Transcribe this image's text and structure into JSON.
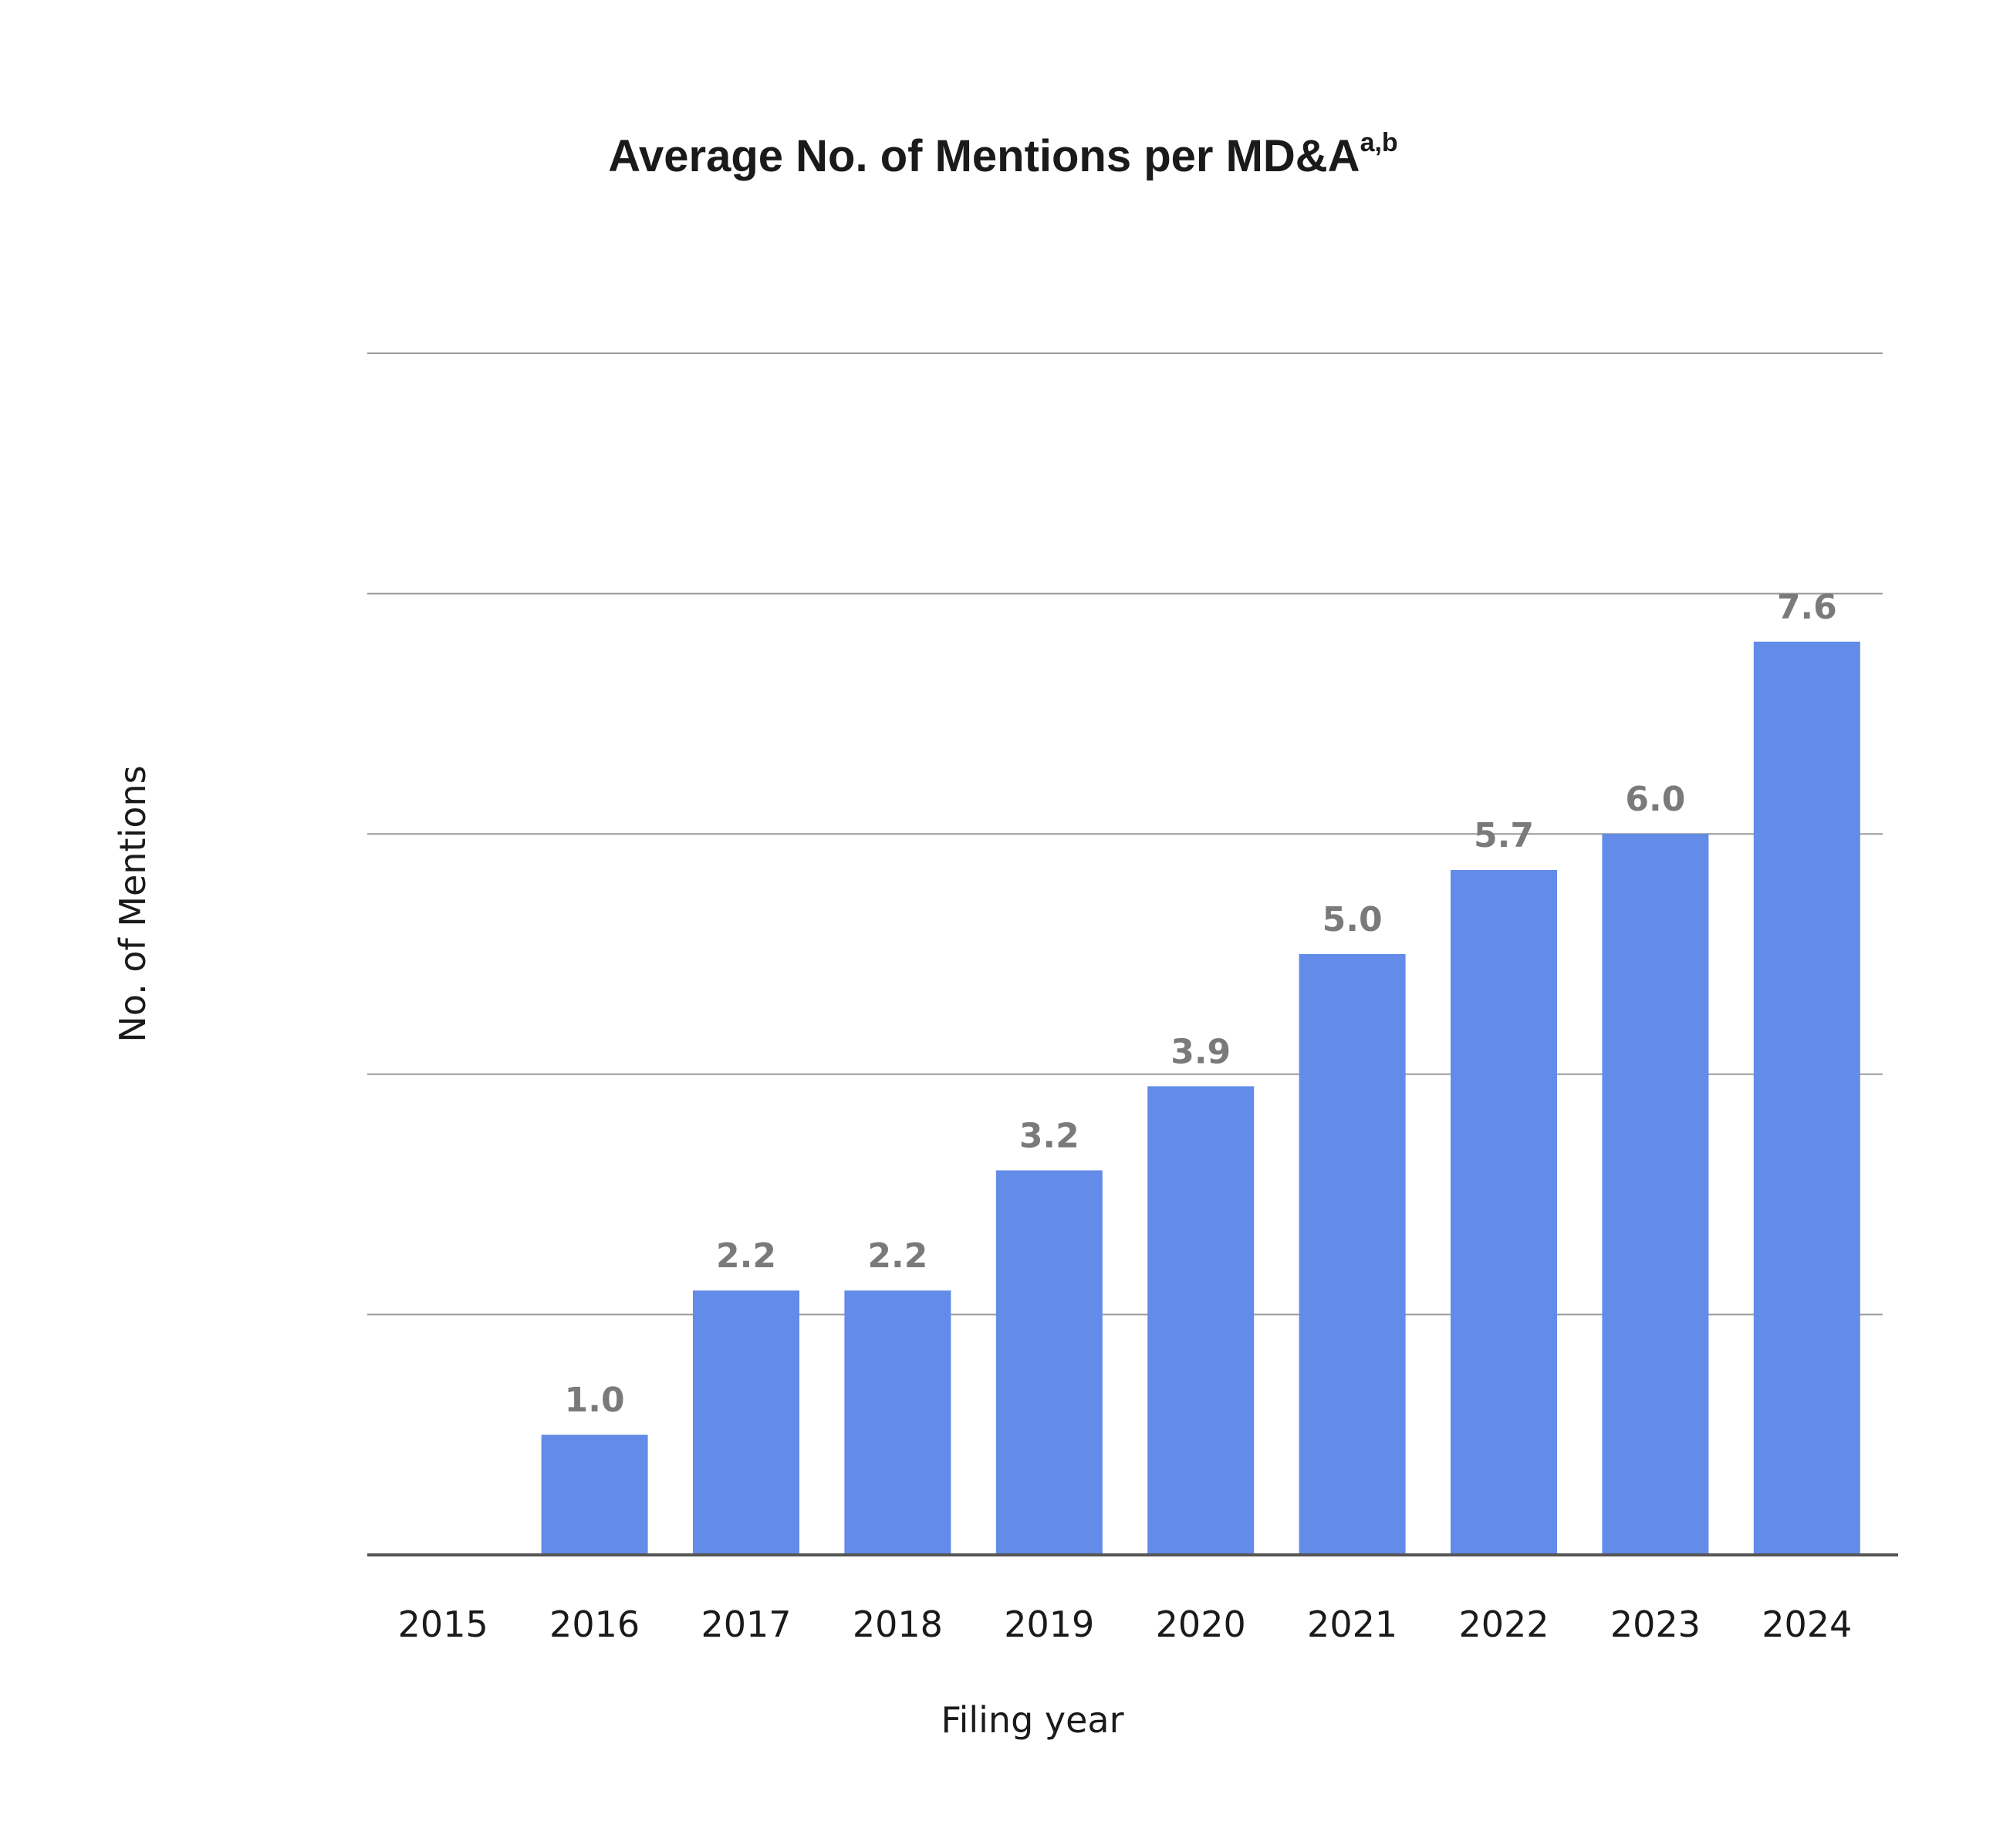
{
  "chart_data": {
    "type": "bar",
    "title": "Average No. of Mentions per MD&A",
    "title_superscript": "a,b",
    "xlabel": "Filing year",
    "ylabel": "No. of Mentions",
    "categories": [
      "2015",
      "2016",
      "2017",
      "2018",
      "2019",
      "2020",
      "2021",
      "2022",
      "2023",
      "2024"
    ],
    "values": [
      0,
      1.0,
      2.2,
      2.2,
      3.2,
      3.9,
      5.0,
      5.7,
      6.0,
      7.6
    ],
    "data_labels": [
      "",
      "1.0",
      "2.2",
      "2.2",
      "3.2",
      "3.9",
      "5.0",
      "5.7",
      "6.0",
      "7.6"
    ],
    "ylim": [
      0,
      10
    ],
    "gridlines": [
      2,
      4,
      6,
      8,
      10
    ],
    "grid": true,
    "legend": "none",
    "bar_color": "#628ce8"
  }
}
